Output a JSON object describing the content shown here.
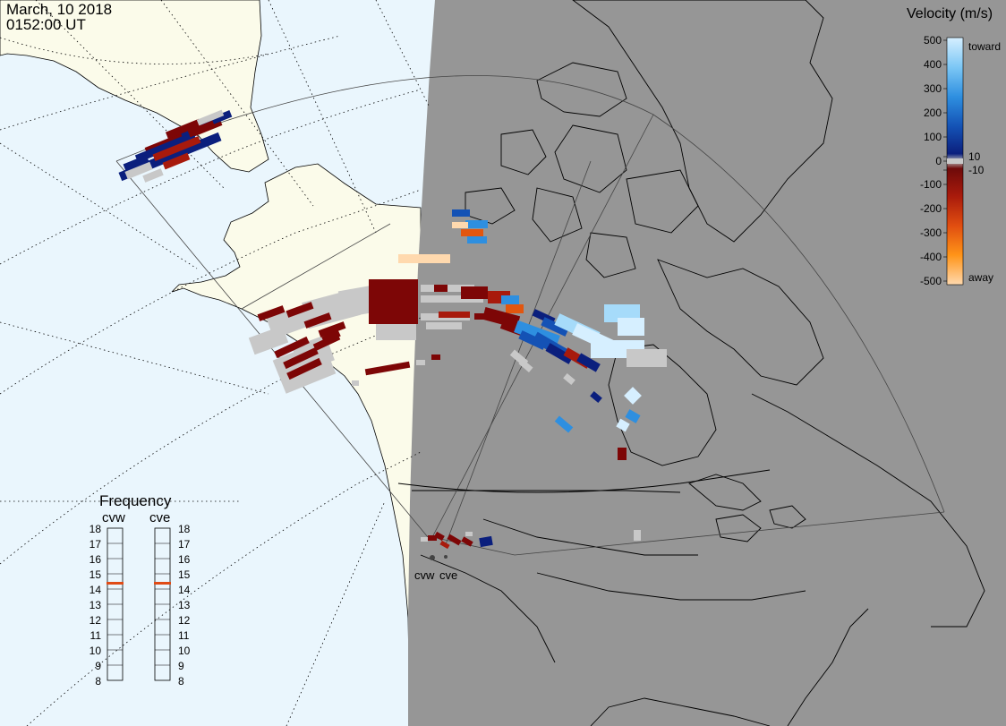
{
  "header": {
    "date": "March, 10 2018",
    "time": "0152:00 UT"
  },
  "velocity_legend": {
    "title": "Velocity (m/s)",
    "toward_label": "toward",
    "away_label": "away",
    "ticks": [
      "500",
      "400",
      "300",
      "200",
      "100",
      "10",
      "0",
      "-10",
      "-100",
      "-200",
      "-300",
      "-400",
      "-500"
    ]
  },
  "frequency_panel": {
    "title": "Frequency",
    "radars": [
      {
        "name": "cvw",
        "selected_mhz": 15
      },
      {
        "name": "cve",
        "selected_mhz": 15
      }
    ],
    "ticks": [
      "18",
      "17",
      "16",
      "15",
      "14",
      "13",
      "12",
      "11",
      "10",
      "9",
      "8"
    ]
  },
  "radar_sites": [
    "cvw",
    "cve"
  ],
  "colors": {
    "ocean": "#eaf6fd",
    "land_day": "#fbfbea",
    "night": "#969696",
    "selection": "#e04b16"
  }
}
